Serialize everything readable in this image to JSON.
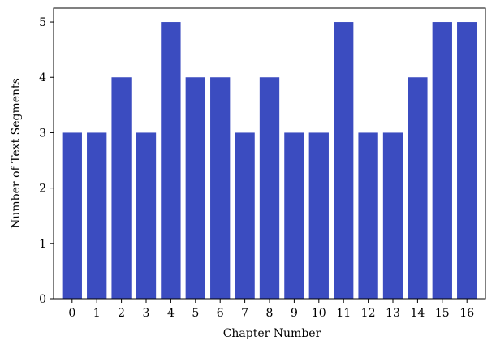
{
  "chart_data": {
    "type": "bar",
    "categories": [
      "0",
      "1",
      "2",
      "3",
      "4",
      "5",
      "6",
      "7",
      "8",
      "9",
      "10",
      "11",
      "12",
      "13",
      "14",
      "15",
      "16"
    ],
    "values": [
      3,
      3,
      4,
      3,
      5,
      4,
      4,
      3,
      4,
      3,
      3,
      5,
      3,
      3,
      4,
      5,
      5
    ],
    "title": "",
    "xlabel": "Chapter Number",
    "ylabel": "Number of Text Segments",
    "ylim": [
      0,
      5.25
    ],
    "yticks": [
      "0",
      "1",
      "2",
      "3",
      "4",
      "5"
    ],
    "grid": false,
    "bar_color": "#3b4cc0"
  }
}
